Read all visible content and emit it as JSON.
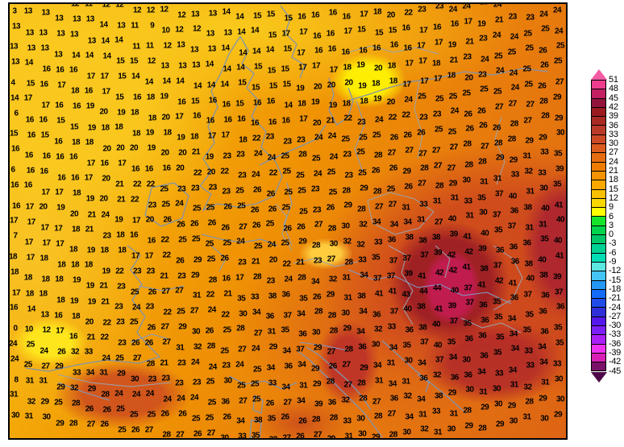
{
  "chart_data": {
    "type": "heatmap",
    "description_visible_text": "",
    "colorbar": {
      "position": "right",
      "tick_labels": [
        51,
        48,
        45,
        42,
        39,
        36,
        33,
        30,
        27,
        24,
        21,
        18,
        15,
        12,
        9,
        6,
        3,
        0,
        -3,
        -6,
        -9,
        -12,
        -15,
        -18,
        -21,
        -24,
        -27,
        -30,
        -33,
        -36,
        -39,
        -42,
        -45
      ],
      "segment_colors": [
        "#ee3c8e",
        "#c22060",
        "#92143c",
        "#9a1a20",
        "#a82a22",
        "#ba3a2a",
        "#ca4a26",
        "#da5c1e",
        "#e66c12",
        "#ee7c04",
        "#f49200",
        "#f8a800",
        "#f8c000",
        "#f8d800",
        "#ffff00",
        "#16e42c",
        "#00d44c",
        "#00c66a",
        "#00d092",
        "#00dcb4",
        "#5ce8e0",
        "#44c4f4",
        "#2496f4",
        "#146cf4",
        "#204ce8",
        "#3030d8",
        "#5418ec",
        "#7c20f8",
        "#ac20f8",
        "#f032f0",
        "#d820b4",
        "#7a1068"
      ],
      "above_max_color": "#f45ca4",
      "below_min_color": "#4e0848"
    },
    "value_label_color": "#000000",
    "map_outline_color": "#000000",
    "coastline_color": "#8494aa",
    "border_line_color": "#9aa4ae",
    "river_color": "#7f9cc8",
    "grid_values": [
      [
        13,
        12,
        12,
        13,
        12,
        11,
        12,
        12,
        12,
        12,
        12,
        12,
        13,
        13,
        14,
        14,
        15,
        15,
        15,
        16,
        16,
        16,
        16,
        17,
        18,
        20,
        22,
        23,
        23,
        24,
        24,
        23,
        24,
        24,
        23,
        24,
        24
      ],
      [
        3,
        13,
        13,
        13,
        13,
        13,
        14,
        13,
        11,
        9,
        10,
        12,
        12,
        13,
        13,
        14,
        14,
        15,
        17,
        17,
        16,
        16,
        17,
        15,
        15,
        15,
        16,
        17,
        16,
        16,
        17,
        19,
        21,
        23,
        23,
        24,
        24
      ],
      [
        13,
        13,
        13,
        13,
        13,
        13,
        14,
        14,
        11,
        11,
        12,
        13,
        13,
        13,
        14,
        14,
        14,
        14,
        15,
        17,
        16,
        16,
        16,
        16,
        16,
        16,
        16,
        17,
        17,
        19,
        21,
        23,
        24,
        24,
        25,
        25,
        24
      ],
      [
        13,
        13,
        13,
        13,
        14,
        14,
        14,
        15,
        15,
        12,
        13,
        13,
        13,
        14,
        14,
        14,
        15,
        15,
        15,
        17,
        17,
        17,
        18,
        19,
        20,
        18,
        17,
        17,
        18,
        21,
        23,
        24,
        25,
        25,
        25,
        26,
        25
      ],
      [
        13,
        14,
        16,
        16,
        16,
        17,
        17,
        15,
        14,
        14,
        14,
        14,
        14,
        14,
        14,
        15,
        15,
        15,
        15,
        19,
        20,
        20,
        20,
        19,
        18,
        18,
        17,
        17,
        17,
        18,
        20,
        23,
        24,
        24,
        25,
        26,
        25
      ],
      [
        4,
        15,
        16,
        17,
        18,
        16,
        17,
        15,
        16,
        18,
        19,
        16,
        15,
        16,
        16,
        15,
        16,
        16,
        14,
        18,
        19,
        19,
        18,
        18,
        19,
        20,
        24,
        25,
        25,
        25,
        25,
        25,
        25,
        24,
        25,
        26,
        27
      ],
      [
        14,
        17,
        17,
        16,
        16,
        19,
        20,
        19,
        18,
        18,
        20,
        17,
        16,
        16,
        16,
        16,
        16,
        16,
        16,
        17,
        20,
        21,
        22,
        23,
        24,
        22,
        22,
        23,
        23,
        24,
        26,
        26,
        27,
        27,
        27,
        28,
        29
      ],
      [
        6,
        16,
        16,
        15,
        15,
        19,
        18,
        18,
        18,
        19,
        18,
        19,
        18,
        17,
        17,
        18,
        22,
        23,
        23,
        23,
        24,
        24,
        25,
        25,
        25,
        26,
        26,
        26,
        25,
        25,
        26,
        26,
        26,
        28,
        27,
        28,
        29
      ],
      [
        15,
        16,
        15,
        16,
        18,
        18,
        20,
        20,
        20,
        19,
        20,
        20,
        21,
        19,
        23,
        23,
        24,
        24,
        25,
        28,
        25,
        24,
        23,
        25,
        28,
        27,
        27,
        27,
        27,
        27,
        28,
        27,
        28,
        28,
        29,
        29,
        30
      ],
      [
        16,
        16,
        16,
        16,
        16,
        17,
        16,
        17,
        16,
        16,
        16,
        20,
        22,
        20,
        22,
        23,
        24,
        22,
        25,
        25,
        24,
        25,
        23,
        25,
        26,
        26,
        29,
        28,
        27,
        27,
        28,
        28,
        29,
        29,
        31,
        33,
        35
      ],
      [
        6,
        16,
        16,
        16,
        16,
        17,
        20,
        21,
        22,
        22,
        25,
        23,
        23,
        23,
        23,
        25,
        26,
        26,
        25,
        25,
        23,
        25,
        28,
        29,
        28,
        25,
        26,
        27,
        28,
        29,
        30,
        31,
        31,
        33,
        32,
        33,
        39
      ],
      [
        16,
        16,
        17,
        17,
        18,
        19,
        20,
        21,
        22,
        23,
        25,
        24,
        25,
        25,
        26,
        25,
        26,
        26,
        25,
        25,
        23,
        26,
        29,
        28,
        27,
        27,
        31,
        33,
        31,
        31,
        33,
        35,
        37,
        40,
        31,
        30,
        35
      ],
      [
        16,
        17,
        20,
        19,
        20,
        21,
        24,
        19,
        17,
        20,
        26,
        26,
        26,
        26,
        26,
        27,
        26,
        25,
        26,
        26,
        27,
        28,
        30,
        32,
        34,
        34,
        34,
        31,
        27,
        40,
        31,
        30,
        37,
        36,
        38,
        40,
        41
      ],
      [
        17,
        17,
        17,
        17,
        18,
        21,
        23,
        18,
        16,
        16,
        22,
        25,
        25,
        25,
        25,
        24,
        25,
        24,
        25,
        29,
        28,
        30,
        32,
        32,
        33,
        36,
        38,
        38,
        38,
        39,
        41,
        40,
        35,
        37,
        31,
        31,
        40
      ],
      [
        7,
        17,
        17,
        17,
        18,
        19,
        18,
        18,
        17,
        17,
        22,
        26,
        29,
        25,
        26,
        23,
        21,
        20,
        22,
        21,
        23,
        27,
        28,
        33,
        35,
        37,
        37,
        37,
        39,
        42,
        42,
        39,
        36,
        36,
        36,
        35,
        40
      ],
      [
        18,
        17,
        18,
        18,
        18,
        18,
        19,
        22,
        23,
        23,
        21,
        23,
        29,
        28,
        16,
        17,
        28,
        23,
        24,
        28,
        34,
        32,
        31,
        34,
        37,
        37,
        39,
        41,
        42,
        42,
        41,
        38,
        37,
        36,
        38,
        40,
        41
      ],
      [
        18,
        18,
        18,
        18,
        19,
        19,
        21,
        23,
        25,
        26,
        27,
        27,
        31,
        22,
        21,
        35,
        33,
        38,
        36,
        35,
        26,
        29,
        31,
        38,
        41,
        41,
        43,
        44,
        44,
        40,
        37,
        41,
        42,
        41,
        40,
        38,
        39
      ],
      [
        17,
        18,
        18,
        18,
        19,
        19,
        21,
        23,
        24,
        23,
        22,
        25,
        27,
        24,
        22,
        30,
        34,
        36,
        37,
        34,
        28,
        28,
        30,
        34,
        36,
        37,
        40,
        38,
        41,
        39,
        37,
        36,
        35,
        36,
        37,
        36,
        37
      ],
      [
        16,
        14,
        13,
        16,
        18,
        20,
        22,
        23,
        25,
        26,
        27,
        29,
        30,
        26,
        25,
        28,
        27,
        31,
        35,
        36,
        30,
        28,
        29,
        34,
        32,
        33,
        36,
        38,
        40,
        37,
        35,
        36,
        35,
        34,
        35,
        36,
        36
      ],
      [
        0,
        10,
        12,
        17,
        16,
        21,
        22,
        23,
        26,
        26,
        27,
        31,
        32,
        28,
        25,
        27,
        24,
        29,
        34,
        37,
        29,
        27,
        28,
        36,
        30,
        34,
        35,
        37,
        40,
        35,
        36,
        36,
        35,
        34,
        35,
        36,
        35
      ],
      [
        24,
        25,
        24,
        26,
        32,
        33,
        24,
        25,
        27,
        28,
        21,
        23,
        24,
        24,
        23,
        24,
        25,
        34,
        36,
        34,
        29,
        26,
        27,
        29,
        34,
        31,
        30,
        34,
        37,
        34,
        30,
        36,
        35,
        34,
        33,
        34,
        35
      ],
      [
        24,
        25,
        27,
        29,
        33,
        34,
        31,
        29,
        30,
        23,
        23,
        23,
        23,
        25,
        30,
        25,
        25,
        33,
        34,
        31,
        29,
        28,
        27,
        28,
        31,
        34,
        31,
        36,
        32,
        36,
        36,
        34,
        33,
        34,
        33,
        34,
        33
      ],
      [
        8,
        31,
        31,
        29,
        32,
        29,
        28,
        24,
        24,
        24,
        24,
        24,
        24,
        25,
        36,
        27,
        25,
        26,
        27,
        34,
        39,
        36,
        32,
        28,
        27,
        36,
        32,
        34,
        38,
        29,
        30,
        31,
        30,
        31,
        32,
        31,
        30
      ],
      [
        31,
        32,
        29,
        25,
        28,
        26,
        26,
        25,
        25,
        25,
        26,
        26,
        25,
        25,
        26,
        34,
        38,
        35,
        26,
        26,
        28,
        28,
        33,
        30,
        28,
        27,
        34,
        31,
        33,
        31,
        28,
        29,
        30,
        29,
        28,
        29,
        30
      ],
      [
        30,
        31,
        30,
        29,
        28,
        27,
        26,
        25,
        26,
        27,
        28,
        27,
        26,
        27,
        30,
        33,
        35,
        32,
        27,
        26,
        27,
        29,
        31,
        30,
        29,
        28,
        30,
        32,
        31,
        30,
        29,
        28,
        29,
        30,
        31,
        30,
        29
      ]
    ]
  }
}
